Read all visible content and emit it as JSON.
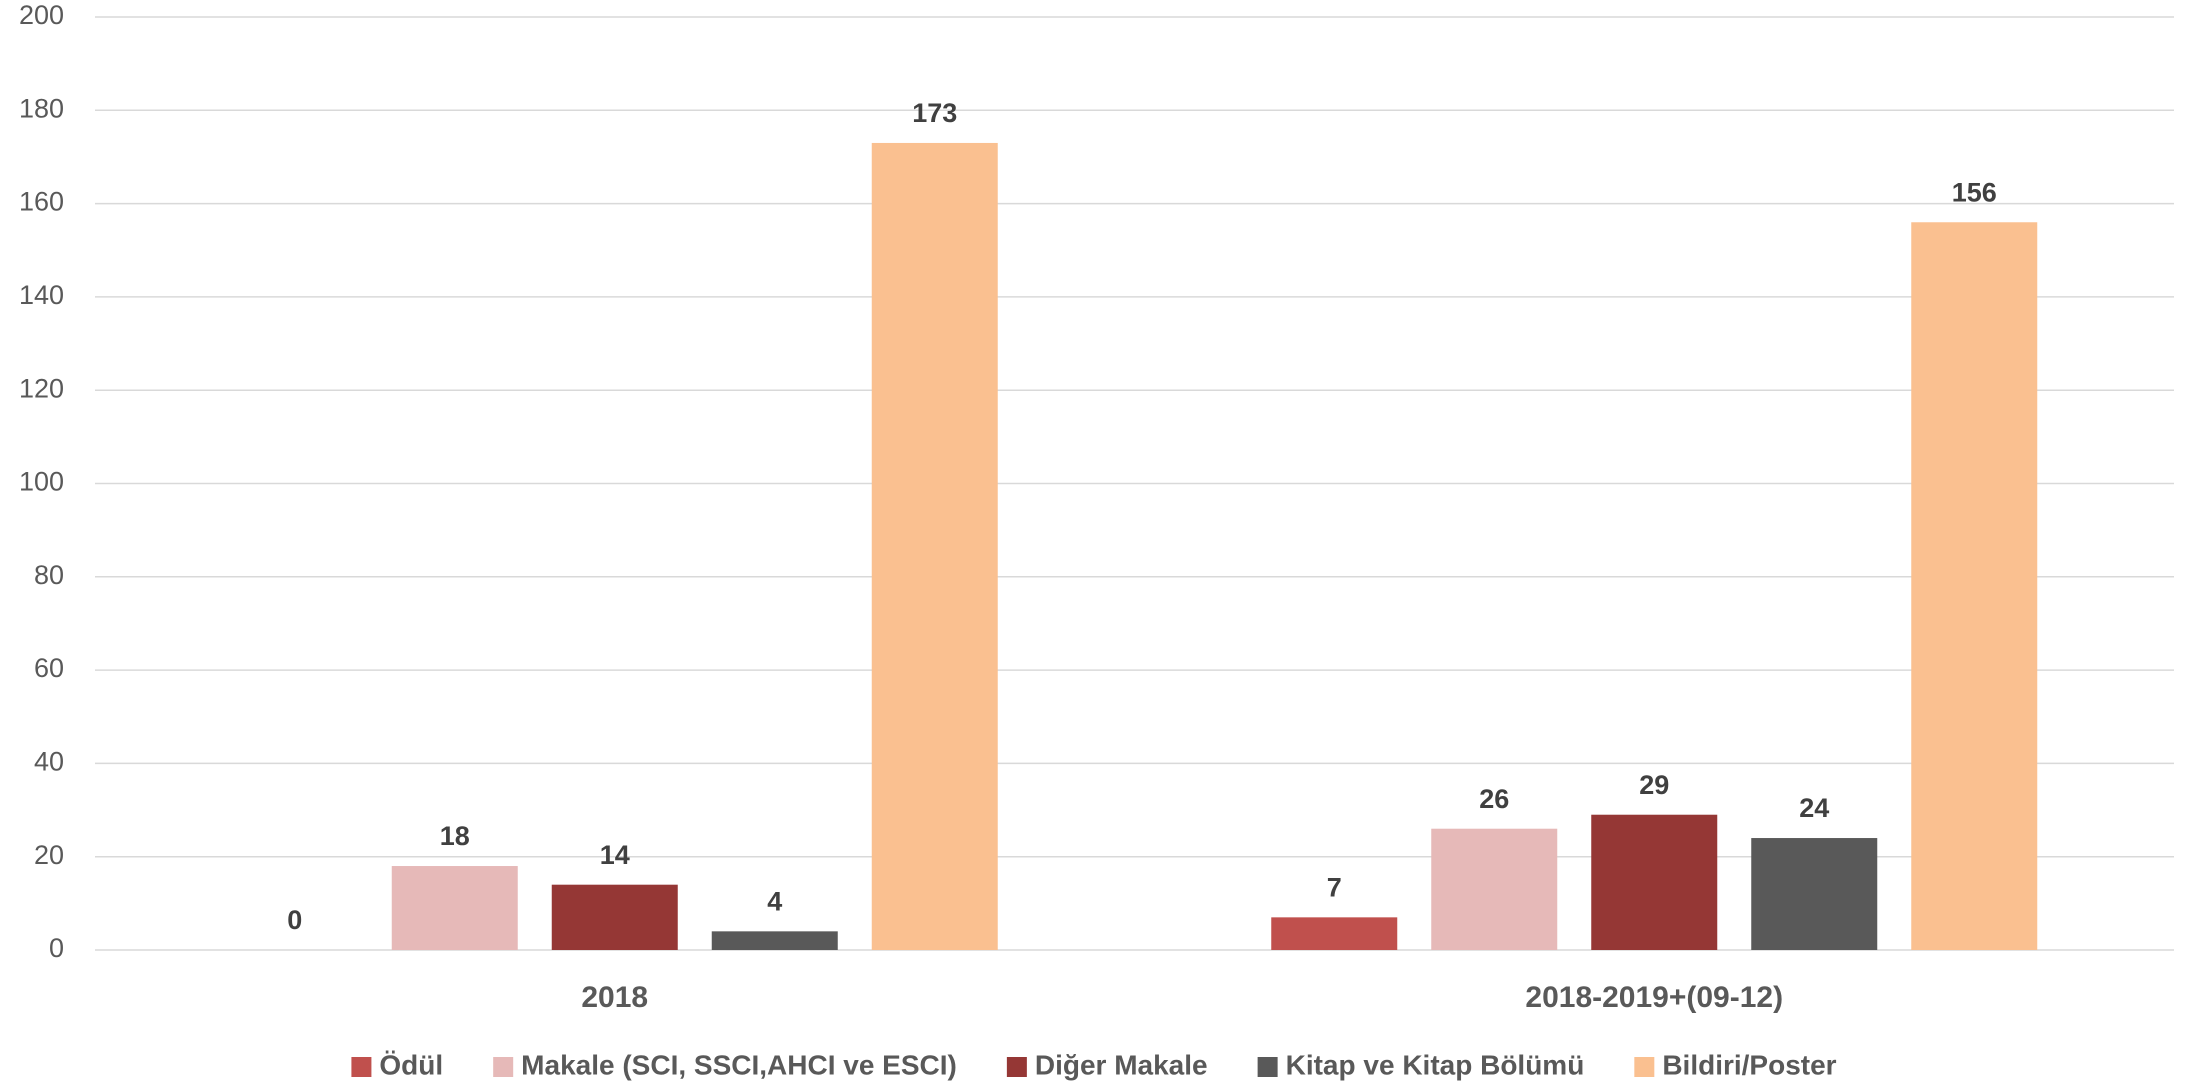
{
  "chart_data": {
    "type": "bar",
    "categories": [
      "2018",
      "2018-2019+(09-12)"
    ],
    "series": [
      {
        "name": "Ödül",
        "color": "#c0504d",
        "values": [
          0,
          7
        ]
      },
      {
        "name": "Makale (SCI, SSCI,AHCI ve ESCI)",
        "color": "#e6b9b8",
        "values": [
          18,
          26
        ]
      },
      {
        "name": "Diğer Makale",
        "color": "#953735",
        "values": [
          14,
          29
        ]
      },
      {
        "name": "Kitap ve Kitap Bölümü",
        "color": "#595959",
        "values": [
          4,
          24
        ]
      },
      {
        "name": "Bildiri/Poster",
        "color": "#fac090",
        "values": [
          173,
          156
        ]
      }
    ],
    "ylim": [
      0,
      200
    ],
    "yticks": [
      0,
      20,
      40,
      60,
      80,
      100,
      120,
      140,
      160,
      180,
      200
    ],
    "grid": true,
    "legend": "bottom"
  }
}
